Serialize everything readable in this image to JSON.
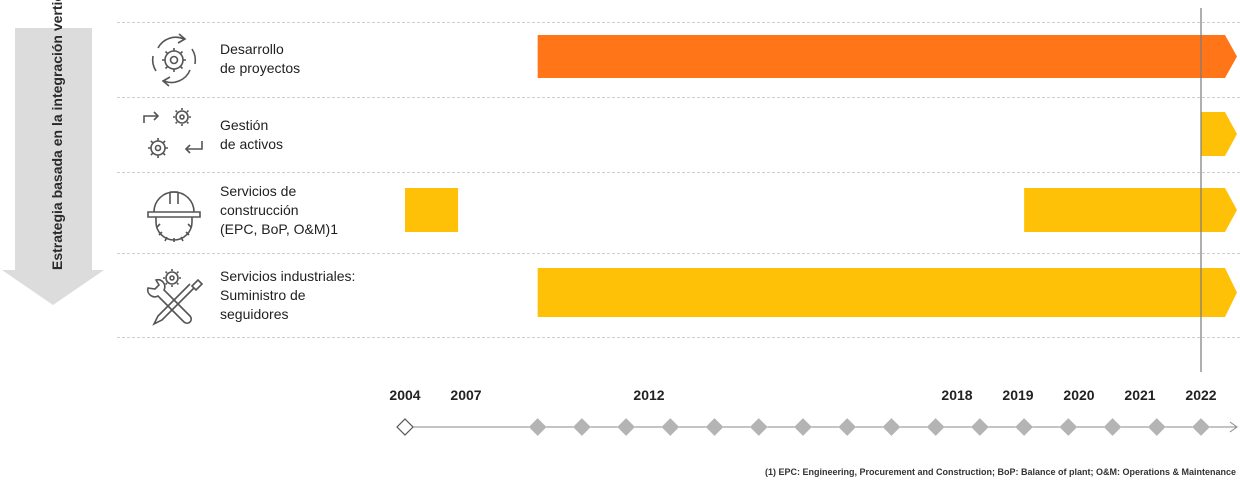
{
  "side_label": "Estrategia basada en la integración vertical",
  "colors": {
    "orange": "#FF7518",
    "yellow": "#FFC107",
    "arrow": "#DCDCDC",
    "diamond": "#B4B4B4",
    "line": "#8a8a8a"
  },
  "rows": [
    {
      "id": "desarrollo",
      "icon": "gear-cycle-icon",
      "lines": [
        "Desarrollo",
        "de proyectos"
      ],
      "color": "orange",
      "bars": [
        {
          "start": 2007,
          "end": 2022.6,
          "arrow": true
        }
      ]
    },
    {
      "id": "gestion",
      "icon": "gears-arrows-icon",
      "lines": [
        "Gestión",
        "de activos"
      ],
      "color": "yellow",
      "bars": [
        {
          "start": 2022,
          "end": 2022.6,
          "arrow": true
        }
      ]
    },
    {
      "id": "construccion",
      "icon": "hard-hat-gear-icon",
      "lines": [
        "Servicios de",
        "construcción",
        "(EPC, BoP, O&M)1"
      ],
      "color": "yellow",
      "bars": [
        {
          "start": 2004,
          "end": 2005.2,
          "arrow": false
        },
        {
          "start": 2018,
          "end": 2022.6,
          "arrow": true
        }
      ]
    },
    {
      "id": "industriales",
      "icon": "tools-gear-icon",
      "lines": [
        "Servicios industriales:",
        "Suministro de",
        "seguidores"
      ],
      "color": "yellow",
      "bars": [
        {
          "start": 2007,
          "end": 2022.6,
          "arrow": true
        }
      ]
    }
  ],
  "timeline": {
    "labels": [
      "2004",
      "2007",
      "2012",
      "2018",
      "2019",
      "2020",
      "2021",
      "2022"
    ],
    "current_year": 2022
  },
  "footnote": "(1) EPC: Engineering, Procurement and Construction; BoP: Balance of plant; O&M: Operations & Maintenance"
}
